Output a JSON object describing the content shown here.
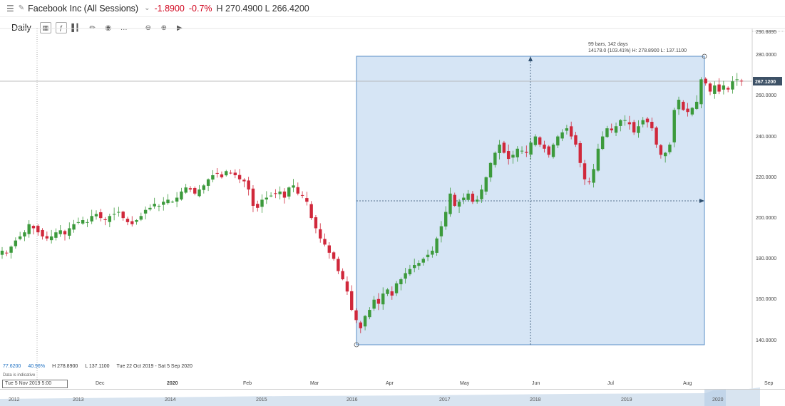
{
  "header": {
    "menu_icon": "hamburger-menu-icon",
    "pencil_icon": "pencil-icon",
    "title": "Facebook Inc (All Sessions)",
    "change": "-1.8900",
    "change_pct": "-0.7%",
    "high_low": "H 270.4900 L 266.4200",
    "change_color": "#d0021b"
  },
  "toolbar": {
    "period": "Daily",
    "icons": [
      "candlestick-icon",
      "indicator-icon",
      "bar-chart-icon",
      "draw-pencil-icon",
      "eye-icon",
      "more-icon",
      "zoom-out-icon",
      "zoom-in-icon",
      "play-icon"
    ]
  },
  "measure": {
    "line1": "99 bars, 142 days",
    "line2": "14178.0 (103.41%)  H: 278.8900 L: 137.1100"
  },
  "stats": {
    "left_value": "77.6200",
    "pct": "40.96%",
    "high": "H 278.8900",
    "low": "L 137.1100",
    "range": "Tue 22 Oct 2019 - Sat 5 Sep 2020",
    "indicative": "Data is indicative"
  },
  "crosshair": {
    "date_label": "Tue 5 Nov 2019 5:00",
    "price_label": "267.1200"
  },
  "y_axis": {
    "top_label": "290.8895",
    "ticks": [
      "280.0000",
      "260.0000",
      "240.0000",
      "220.0000",
      "200.0000",
      "180.0000",
      "160.0000",
      "140.0000"
    ]
  },
  "x_axis": {
    "labels": [
      "Dec",
      "2020",
      "Feb",
      "Mar",
      "Apr",
      "May",
      "Jun",
      "Jul",
      "Aug",
      "Sep"
    ]
  },
  "navigator": {
    "years": [
      "2012",
      "2013",
      "2014",
      "2015",
      "2016",
      "2017",
      "2018",
      "2019",
      "2020"
    ]
  },
  "colors": {
    "up": "#3c9a3c",
    "down": "#d0283b",
    "selection_fill": "#cfe1f3",
    "selection_stroke": "#5b8fc7",
    "price_tag": "#3d5166"
  },
  "chart_data": {
    "type": "candlestick",
    "x": "trading days Oct 2019 - Sep 2020",
    "ylim": [
      137,
      291
    ],
    "close": [
      184,
      183,
      186,
      189,
      191,
      193,
      197,
      195,
      193,
      191,
      190,
      191,
      193,
      194,
      192,
      195,
      197,
      198,
      199,
      198,
      201,
      202,
      200,
      199,
      201,
      202,
      203,
      200,
      198,
      197,
      199,
      201,
      204,
      205,
      207,
      206,
      208,
      209,
      208,
      210,
      213,
      215,
      214,
      212,
      214,
      216,
      219,
      221,
      222,
      220,
      223,
      222,
      221,
      219,
      218,
      214,
      206,
      205,
      209,
      210,
      211,
      212,
      213,
      210,
      215,
      216,
      212,
      211,
      208,
      200,
      195,
      190,
      187,
      183,
      180,
      174,
      170,
      164,
      155,
      150,
      146,
      152,
      155,
      160,
      158,
      163,
      165,
      162,
      168,
      170,
      173,
      175,
      177,
      178,
      180,
      182,
      184,
      190,
      196,
      203,
      212,
      206,
      208,
      210,
      212,
      208,
      209,
      214,
      220,
      227,
      232,
      236,
      232,
      229,
      231,
      234,
      233,
      232,
      237,
      240,
      236,
      234,
      231,
      236,
      240,
      242,
      244,
      240,
      236,
      227,
      219,
      218,
      224,
      234,
      240,
      244,
      243,
      245,
      248,
      248,
      246,
      242,
      245,
      248,
      247,
      244,
      236,
      231,
      232,
      236,
      253,
      258,
      253,
      252,
      254,
      257,
      268,
      266,
      262,
      265,
      262,
      265,
      263,
      267,
      268,
      267
    ]
  }
}
